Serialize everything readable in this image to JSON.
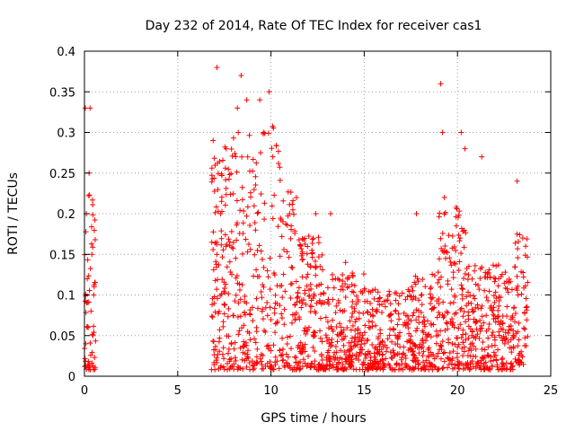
{
  "chart_data": {
    "type": "scatter",
    "title": "Day 232 of 2014, Rate Of TEC Index for receiver cas1",
    "xlabel": "GPS time / hours",
    "ylabel": "ROTI / TECUs",
    "xlim": [
      0,
      25
    ],
    "ylim": [
      0,
      0.4
    ],
    "x_ticks": [
      0,
      5,
      10,
      15,
      20,
      25
    ],
    "x_tick_labels": [
      "0",
      "5",
      "10",
      "15",
      "20",
      "25"
    ],
    "y_ticks": [
      0,
      0.05,
      0.1,
      0.15,
      0.2,
      0.25,
      0.3,
      0.35,
      0.4
    ],
    "y_tick_labels": [
      "0",
      "0.05",
      "0.1",
      "0.15",
      "0.2",
      "0.25",
      "0.3",
      "0.35",
      "0.4"
    ],
    "grid": true,
    "marker": "+",
    "marker_color": "#ff0000",
    "series": [
      {
        "name": "cas1",
        "segments_hours": [
          [
            0.0,
            0.6
          ],
          [
            6.8,
            23.8
          ]
        ],
        "points": [
          [
            0.05,
            0.33
          ],
          [
            0.1,
            0.2
          ],
          [
            0.15,
            0.12
          ],
          [
            0.2,
            0.06
          ],
          [
            0.25,
            0.25
          ],
          [
            0.3,
            0.33
          ],
          [
            0.35,
            0.08
          ],
          [
            0.4,
            0.15
          ],
          [
            0.45,
            0.05
          ],
          [
            0.5,
            0.1
          ],
          [
            6.9,
            0.29
          ],
          [
            7.1,
            0.38
          ],
          [
            7.3,
            0.2
          ],
          [
            7.6,
            0.28
          ],
          [
            8.2,
            0.33
          ],
          [
            8.4,
            0.37
          ],
          [
            8.7,
            0.34
          ],
          [
            9.4,
            0.34
          ],
          [
            9.6,
            0.3
          ],
          [
            9.9,
            0.35
          ],
          [
            10.1,
            0.27
          ],
          [
            11.0,
            0.2
          ],
          [
            12.4,
            0.2
          ],
          [
            13.2,
            0.2
          ],
          [
            14.0,
            0.14
          ],
          [
            17.8,
            0.2
          ],
          [
            19.1,
            0.36
          ],
          [
            19.2,
            0.3
          ],
          [
            19.3,
            0.22
          ],
          [
            20.2,
            0.3
          ],
          [
            20.4,
            0.28
          ],
          [
            21.3,
            0.27
          ],
          [
            23.2,
            0.24
          ],
          [
            23.5,
            0.17
          ]
        ]
      }
    ]
  }
}
